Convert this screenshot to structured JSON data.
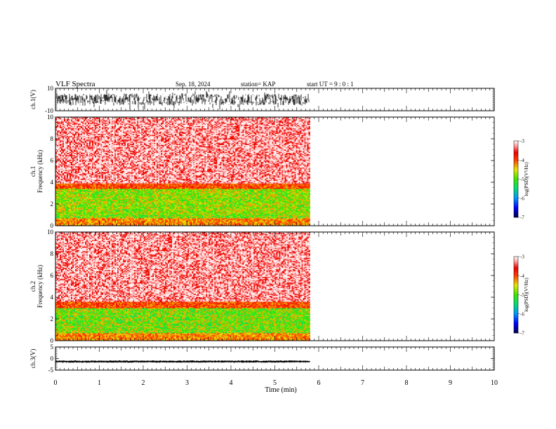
{
  "header": {
    "title": "VLF Spectra",
    "date": "Sep. 18, 2024",
    "station": "station= KAP",
    "start": "start  UT =   9 : 0  : 1"
  },
  "chart_data": [
    {
      "type": "line",
      "panel": "ch1-waveform",
      "ylabel": "ch.1(V)",
      "ylim": [
        -10,
        10
      ],
      "yticks": [
        10,
        -10
      ],
      "xlim": [
        0,
        10
      ],
      "data_end_min": 5.8,
      "series_color": "#000000",
      "envelope": {
        "approx_amplitude_V": [
          -5,
          5
        ]
      }
    },
    {
      "type": "heatmap",
      "panel": "ch1-spectrogram",
      "ylabel": "ch.1\nFrequency (kHz)",
      "ylim": [
        0,
        10
      ],
      "yticks": [
        "0",
        "2",
        "4",
        "6",
        "8",
        "10"
      ],
      "xlim": [
        0,
        10
      ],
      "data_end_min": 5.8,
      "colorbar": {
        "label": "log(PSD)(V²/Hz)",
        "ticks": [
          "-3",
          "-4",
          "-5",
          "-6",
          "-7"
        ],
        "range": [
          -7,
          -3
        ]
      },
      "bands_kHz": [
        {
          "from": 0.0,
          "to": 0.7,
          "level": -4.2
        },
        {
          "from": 0.7,
          "to": 1.0,
          "level": -5.0
        },
        {
          "from": 1.0,
          "to": 3.4,
          "level": -4.9
        },
        {
          "from": 3.4,
          "to": 3.9,
          "level": -4.0
        },
        {
          "from": 3.9,
          "to": 10.0,
          "level": -3.4
        }
      ]
    },
    {
      "type": "heatmap",
      "panel": "ch2-spectrogram",
      "ylabel": "ch.2\nFrequency (kHz)",
      "ylim": [
        0,
        10
      ],
      "yticks": [
        "0",
        "2",
        "4",
        "6",
        "8",
        "10"
      ],
      "xlim": [
        0,
        10
      ],
      "data_end_min": 5.8,
      "colorbar": {
        "label": "log(PSD)(V²/Hz)",
        "ticks": [
          "-3",
          "-4",
          "-5",
          "-6",
          "-7"
        ],
        "range": [
          -7,
          -3
        ]
      },
      "bands_kHz": [
        {
          "from": 0.0,
          "to": 0.7,
          "level": -4.2
        },
        {
          "from": 0.7,
          "to": 1.0,
          "level": -5.0
        },
        {
          "from": 1.0,
          "to": 3.0,
          "level": -5.0
        },
        {
          "from": 3.0,
          "to": 3.6,
          "level": -4.0
        },
        {
          "from": 3.6,
          "to": 10.0,
          "level": -3.4
        }
      ]
    },
    {
      "type": "line",
      "panel": "ch3-waveform",
      "ylabel": "ch.3(V)",
      "ylim": [
        -5,
        5
      ],
      "yticks": [
        5,
        0,
        -5
      ],
      "xlim": [
        0,
        10
      ],
      "data_end_min": 5.8,
      "series_color": "#000000",
      "trace_level_V": [
        -1.8,
        -0.8
      ]
    }
  ],
  "x_axis": {
    "label": "Time (min)",
    "ticks": [
      "0",
      "1",
      "2",
      "3",
      "4",
      "5",
      "6",
      "7",
      "8",
      "9",
      "10"
    ]
  }
}
